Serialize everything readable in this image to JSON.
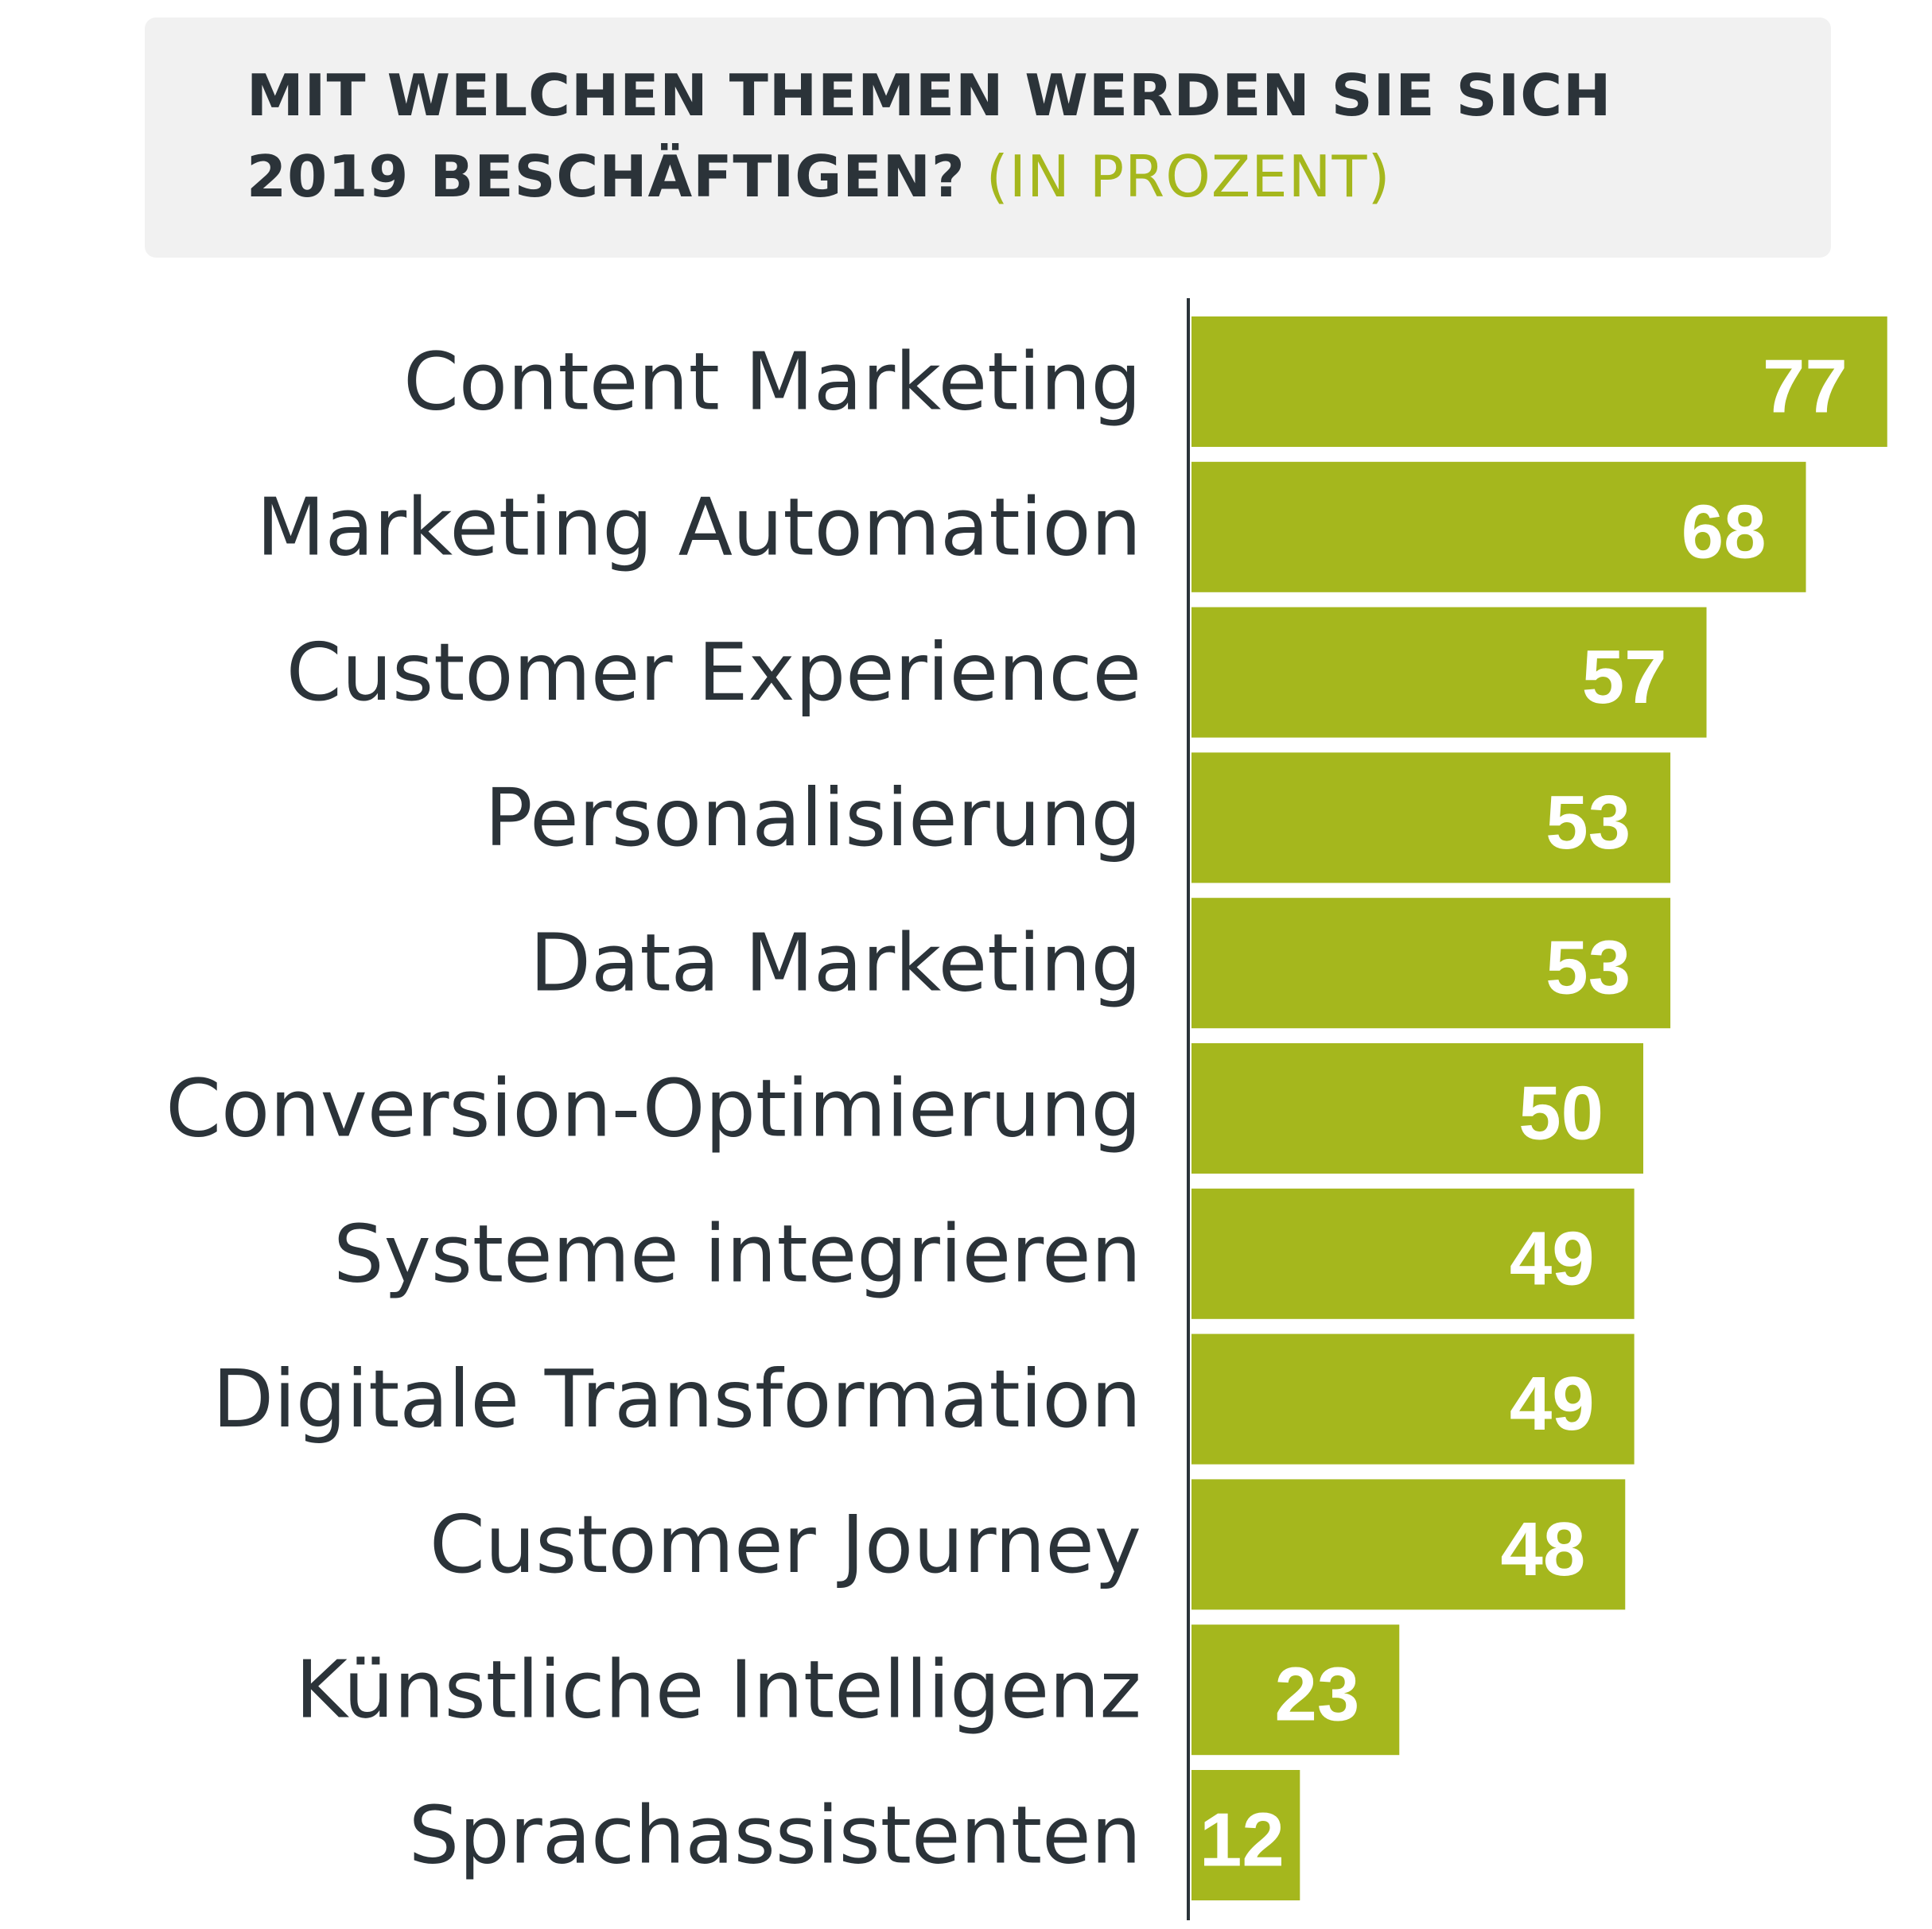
{
  "title": {
    "line1": "MIT WELCHEN THEMEN WERDEN SIE SICH",
    "line2": "2019 BESCHÄFTIGEN?",
    "unit": "(IN PROZENT)"
  },
  "colors": {
    "bar": "#a5b71d",
    "text": "#2b3339",
    "axis": "#2b3339",
    "title_bg": "#f1f1f1"
  },
  "chart_data": {
    "type": "bar",
    "orientation": "horizontal",
    "categories": [
      "Content Marketing",
      "Marketing Automation",
      "Customer Experience",
      "Personalisierung",
      "Data Marketing",
      "Conversion-Optimierung",
      "Systeme integrieren",
      "Digitale Transformation",
      "Customer Journey",
      "Künstliche Intelligenz",
      "Sprachassistenten"
    ],
    "values": [
      77,
      68,
      57,
      53,
      53,
      50,
      49,
      49,
      48,
      23,
      12
    ],
    "data_labels": [
      "77",
      "68",
      "57",
      "53",
      "53",
      "50",
      "49",
      "49",
      "48",
      "23",
      "12"
    ],
    "grid": false,
    "legend": "none"
  }
}
